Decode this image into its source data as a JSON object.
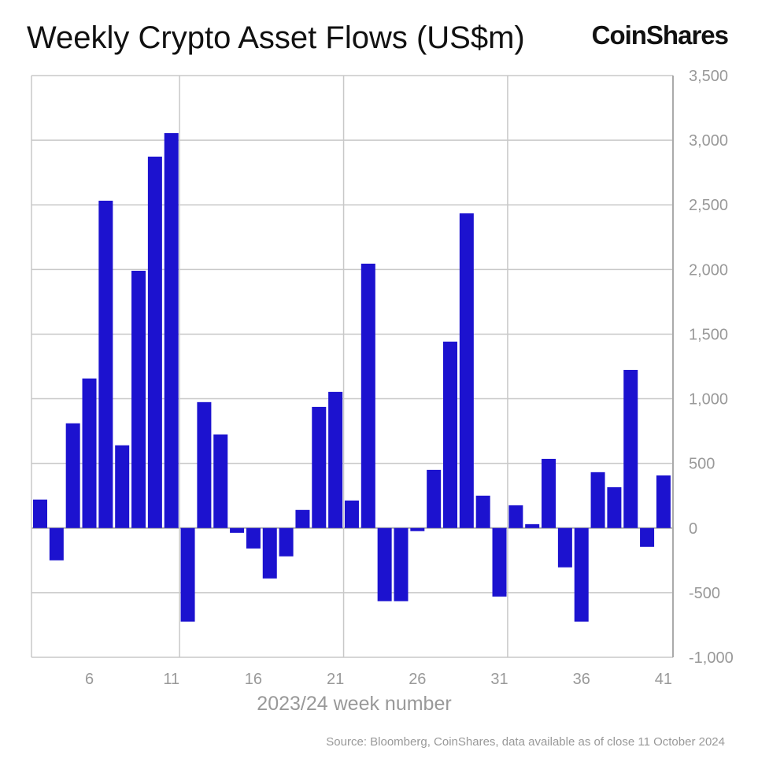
{
  "chart_data": {
    "type": "bar",
    "title": "Weekly Crypto Asset Flows (US$m)",
    "xlabel": "2023/24 week number",
    "ylabel": "",
    "ylim": [
      -1000,
      3500
    ],
    "yticks": [
      3500,
      3000,
      2500,
      2000,
      1500,
      1000,
      500,
      0,
      -500,
      -1000
    ],
    "ytick_labels": [
      "3,500",
      "3,000",
      "2,500",
      "2,000",
      "1,500",
      "1,000",
      "500",
      "0",
      "-500",
      "-1,000"
    ],
    "xticks": [
      6,
      11,
      16,
      21,
      26,
      31,
      36,
      41
    ],
    "x": [
      3,
      4,
      5,
      6,
      7,
      8,
      9,
      10,
      11,
      12,
      13,
      14,
      15,
      16,
      17,
      18,
      19,
      20,
      21,
      22,
      23,
      24,
      25,
      26,
      27,
      28,
      29,
      30,
      31,
      32,
      33,
      34,
      35,
      36,
      37,
      38,
      39,
      40,
      41
    ],
    "values": [
      220,
      -250,
      810,
      1157,
      2532,
      640,
      1990,
      2873,
      3055,
      -724,
      974,
      724,
      -37,
      -158,
      -390,
      -219,
      140,
      937,
      1053,
      213,
      2045,
      -566,
      -566,
      -24,
      450,
      1442,
      2434,
      250,
      -530,
      176,
      30,
      535,
      -304,
      -724,
      432,
      316,
      1223,
      -146,
      407
    ],
    "grid": true,
    "bar_color": "#1c12cf"
  },
  "logo": "CoinShares",
  "source": "Source: Bloomberg, CoinShares, data available as of close 11 October 2024"
}
